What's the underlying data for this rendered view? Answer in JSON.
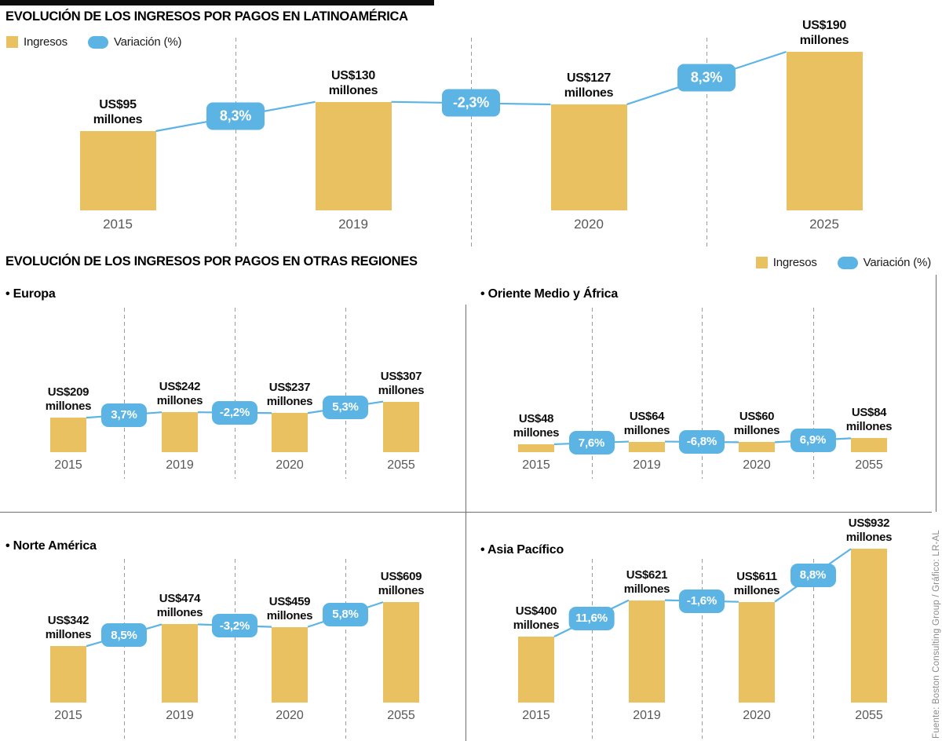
{
  "page": {
    "title_latam": "EVOLUCIÓN DE LOS INGRESOS POR PAGOS EN LATINOAMÉRICA",
    "title_otras": "EVOLUCIÓN DE LOS INGRESOS POR PAGOS EN OTRAS REGIONES",
    "legend": {
      "ingresos": "Ingresos",
      "variacion": "Variación (%)"
    },
    "source": "Fuente: Boston Consulting Group / Gráfico: LR-AL",
    "value_prefix": "US$",
    "value_suffix": "millones",
    "bullet": "•"
  },
  "colors": {
    "bar": "#e9c161",
    "accent_blue": "#5cb4e5",
    "title_text": "#000000",
    "year_text": "#58585a",
    "grid_dash": "#9b9b9b",
    "divider": "#6f6f6f",
    "source_text": "#8a8a8a"
  },
  "chart_data": [
    {
      "id": "latam",
      "type": "bar",
      "region": "Latinoamérica",
      "categories": [
        "2015",
        "2019",
        "2020",
        "2025"
      ],
      "values": [
        95,
        130,
        127,
        190
      ],
      "variations": [
        "8,3%",
        "-2,3%",
        "8,3%"
      ],
      "unit": "US$ millones",
      "legend_entries": [
        "Ingresos",
        "Variación (%)"
      ]
    },
    {
      "id": "europa",
      "type": "bar",
      "region": "Europa",
      "categories": [
        "2015",
        "2019",
        "2020",
        "2055"
      ],
      "values": [
        209,
        242,
        237,
        307
      ],
      "variations": [
        "3,7%",
        "-2,2%",
        "5,3%"
      ],
      "unit": "US$ millones"
    },
    {
      "id": "oriente",
      "type": "bar",
      "region": "Oriente Medio y África",
      "categories": [
        "2015",
        "2019",
        "2020",
        "2055"
      ],
      "values": [
        48,
        64,
        60,
        84
      ],
      "variations": [
        "7,6%",
        "-6,8%",
        "6,9%"
      ],
      "unit": "US$ millones"
    },
    {
      "id": "norte",
      "type": "bar",
      "region": "Norte América",
      "categories": [
        "2015",
        "2019",
        "2020",
        "2055"
      ],
      "values": [
        342,
        474,
        459,
        609
      ],
      "variations": [
        "8,5%",
        "-3,2%",
        "5,8%"
      ],
      "unit": "US$ millones"
    },
    {
      "id": "asia",
      "type": "bar",
      "region": "Asia Pacífico",
      "categories": [
        "2015",
        "2019",
        "2020",
        "2055"
      ],
      "values": [
        400,
        621,
        611,
        932
      ],
      "variations": [
        "11,6%",
        "-1,6%",
        "8,8%"
      ],
      "unit": "US$ millones"
    }
  ]
}
